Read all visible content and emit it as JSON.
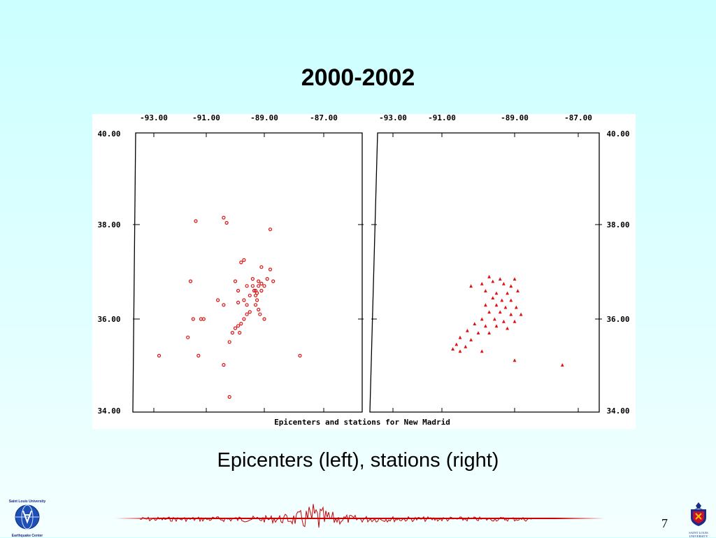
{
  "slide": {
    "title": "2000-2002",
    "caption": "Epicenters (left), stations (right)",
    "page_number": "7"
  },
  "figure": {
    "caption": "Epicenters and stations for New Madrid",
    "longitude_ticks": [
      "-93.00",
      "-91.00",
      "-89.00",
      "-87.00"
    ],
    "latitude_ticks": [
      "40.00",
      "38.00",
      "36.00",
      "34.00"
    ]
  },
  "logos": {
    "left_top_text": "Saint Louis University",
    "left_bottom_text": "Earthquake Center",
    "right_text_line1": "SAINT LOUIS",
    "right_text_line2": "UNIVERSITY"
  },
  "colors": {
    "marker": "#e01010",
    "accent": "#cc0000"
  },
  "chart_data": [
    {
      "type": "scatter",
      "name": "epicenters",
      "marker": "circle",
      "x_ticks": [
        "-93.00",
        "-91.00",
        "-89.00",
        "-87.00"
      ],
      "y_ticks": [
        "40.00",
        "38.00",
        "36.00",
        "34.00"
      ],
      "xlim": [
        -94.0,
        -86.0
      ],
      "ylim": [
        34.0,
        40.0
      ],
      "points": [
        [
          -91.4,
          38.1
        ],
        [
          -90.4,
          38.2
        ],
        [
          -90.3,
          38.05
        ],
        [
          -88.8,
          37.9
        ],
        [
          -89.8,
          37.2
        ],
        [
          -89.7,
          37.25
        ],
        [
          -89.1,
          37.1
        ],
        [
          -88.8,
          37.05
        ],
        [
          -91.6,
          36.8
        ],
        [
          -90.0,
          36.8
        ],
        [
          -89.2,
          36.8
        ],
        [
          -89.4,
          36.85
        ],
        [
          -89.6,
          36.7
        ],
        [
          -89.9,
          36.6
        ],
        [
          -89.7,
          36.4
        ],
        [
          -89.9,
          36.35
        ],
        [
          -90.6,
          36.4
        ],
        [
          -90.4,
          36.3
        ],
        [
          -91.1,
          36.0
        ],
        [
          -91.2,
          36.0
        ],
        [
          -91.5,
          36.0
        ],
        [
          -91.7,
          35.6
        ],
        [
          -92.8,
          35.2
        ],
        [
          -91.3,
          35.2
        ],
        [
          -90.4,
          35.0
        ],
        [
          -90.2,
          34.3
        ],
        [
          -87.8,
          35.2
        ],
        [
          -89.0,
          36.0
        ],
        [
          -89.3,
          36.6
        ],
        [
          -89.25,
          36.55
        ],
        [
          -89.3,
          36.5
        ],
        [
          -89.25,
          36.4
        ],
        [
          -89.3,
          36.3
        ],
        [
          -89.2,
          36.2
        ],
        [
          -89.15,
          36.1
        ],
        [
          -89.2,
          36.7
        ],
        [
          -89.35,
          36.6
        ],
        [
          -89.4,
          36.7
        ],
        [
          -89.5,
          36.5
        ],
        [
          -89.6,
          36.3
        ],
        [
          -89.5,
          36.15
        ],
        [
          -89.6,
          36.1
        ],
        [
          -89.7,
          36.0
        ],
        [
          -89.8,
          35.9
        ],
        [
          -89.9,
          35.85
        ],
        [
          -90.0,
          35.8
        ],
        [
          -89.85,
          35.7
        ],
        [
          -90.1,
          35.7
        ],
        [
          -90.2,
          35.5
        ],
        [
          -89.1,
          36.6
        ],
        [
          -89.0,
          36.7
        ],
        [
          -89.1,
          36.75
        ],
        [
          -88.7,
          36.8
        ],
        [
          -88.9,
          36.85
        ]
      ]
    },
    {
      "type": "scatter",
      "name": "stations",
      "marker": "triangle",
      "x_ticks": [
        "-93.00",
        "-91.00",
        "-89.00",
        "-87.00"
      ],
      "y_ticks": [
        "40.00",
        "38.00",
        "36.00",
        "34.00"
      ],
      "xlim": [
        -94.0,
        -86.0
      ],
      "ylim": [
        34.0,
        40.0
      ],
      "points": [
        [
          -90.2,
          36.7
        ],
        [
          -89.9,
          36.75
        ],
        [
          -89.6,
          36.8
        ],
        [
          -89.3,
          36.75
        ],
        [
          -89.1,
          36.7
        ],
        [
          -89.8,
          36.6
        ],
        [
          -89.5,
          36.55
        ],
        [
          -89.2,
          36.55
        ],
        [
          -88.9,
          36.6
        ],
        [
          -89.6,
          36.45
        ],
        [
          -89.35,
          36.4
        ],
        [
          -89.1,
          36.4
        ],
        [
          -89.8,
          36.3
        ],
        [
          -89.5,
          36.3
        ],
        [
          -89.25,
          36.25
        ],
        [
          -88.95,
          36.25
        ],
        [
          -89.7,
          36.15
        ],
        [
          -89.4,
          36.15
        ],
        [
          -89.1,
          36.1
        ],
        [
          -88.8,
          36.1
        ],
        [
          -89.9,
          36.0
        ],
        [
          -89.55,
          36.0
        ],
        [
          -89.3,
          35.95
        ],
        [
          -89.0,
          35.95
        ],
        [
          -90.1,
          35.9
        ],
        [
          -89.8,
          35.85
        ],
        [
          -89.5,
          35.85
        ],
        [
          -89.2,
          35.8
        ],
        [
          -90.3,
          35.75
        ],
        [
          -90.0,
          35.7
        ],
        [
          -89.7,
          35.7
        ],
        [
          -90.5,
          35.6
        ],
        [
          -90.2,
          35.55
        ],
        [
          -90.6,
          35.45
        ],
        [
          -90.35,
          35.4
        ],
        [
          -90.7,
          35.35
        ],
        [
          -90.5,
          35.3
        ],
        [
          -89.9,
          35.3
        ],
        [
          -89.0,
          35.1
        ],
        [
          -87.5,
          35.0
        ],
        [
          -89.4,
          36.85
        ],
        [
          -89.0,
          36.85
        ],
        [
          -89.7,
          36.9
        ]
      ]
    }
  ]
}
